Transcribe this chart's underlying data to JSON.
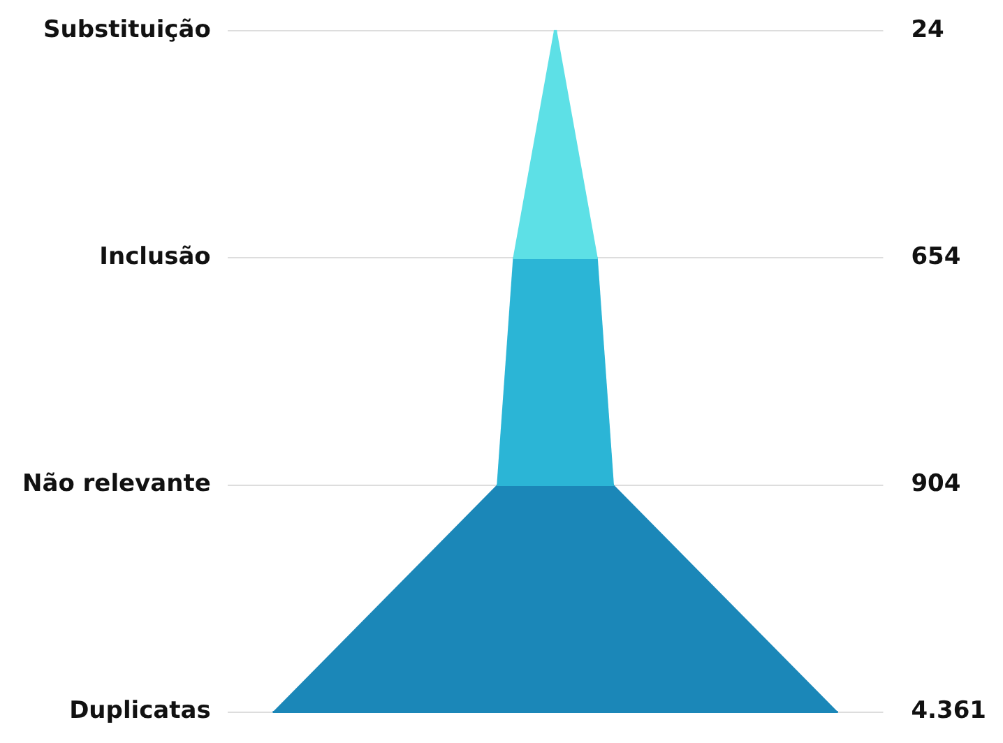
{
  "chart_data": {
    "type": "other",
    "categories": [
      "Substituição",
      "Inclusão",
      "Não relevante",
      "Duplicatas"
    ],
    "values": [
      24,
      654,
      904,
      4361
    ],
    "value_labels": [
      "24",
      "654",
      "904",
      "4.361"
    ],
    "colors": [
      "#5de0e6",
      "#5de0e6",
      "#2bb5d6",
      "#1b87b8"
    ]
  }
}
